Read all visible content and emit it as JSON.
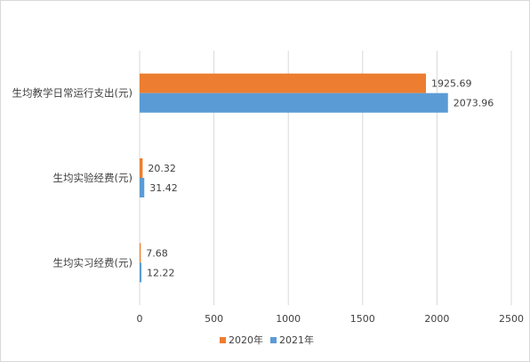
{
  "chart_data": {
    "type": "bar",
    "orientation": "horizontal",
    "categories": [
      "生均教学日常运行支出(元)",
      "生均实验经费(元)",
      "生均实习经费(元)"
    ],
    "series": [
      {
        "name": "2020年",
        "color": "#ED7D31",
        "values": [
          1925.69,
          20.32,
          7.68
        ]
      },
      {
        "name": "2021年",
        "color": "#5B9BD5",
        "values": [
          2073.96,
          31.42,
          12.22
        ]
      }
    ],
    "value_labels": [
      [
        "1925.69",
        "20.32",
        "7.68"
      ],
      [
        "2073.96",
        "31.42",
        "12.22"
      ]
    ],
    "x_ticks": [
      "0",
      "500",
      "1000",
      "1500",
      "2000",
      "2500"
    ],
    "xlim": [
      0,
      2500
    ],
    "grid": "vertical",
    "legend_position": "bottom"
  }
}
